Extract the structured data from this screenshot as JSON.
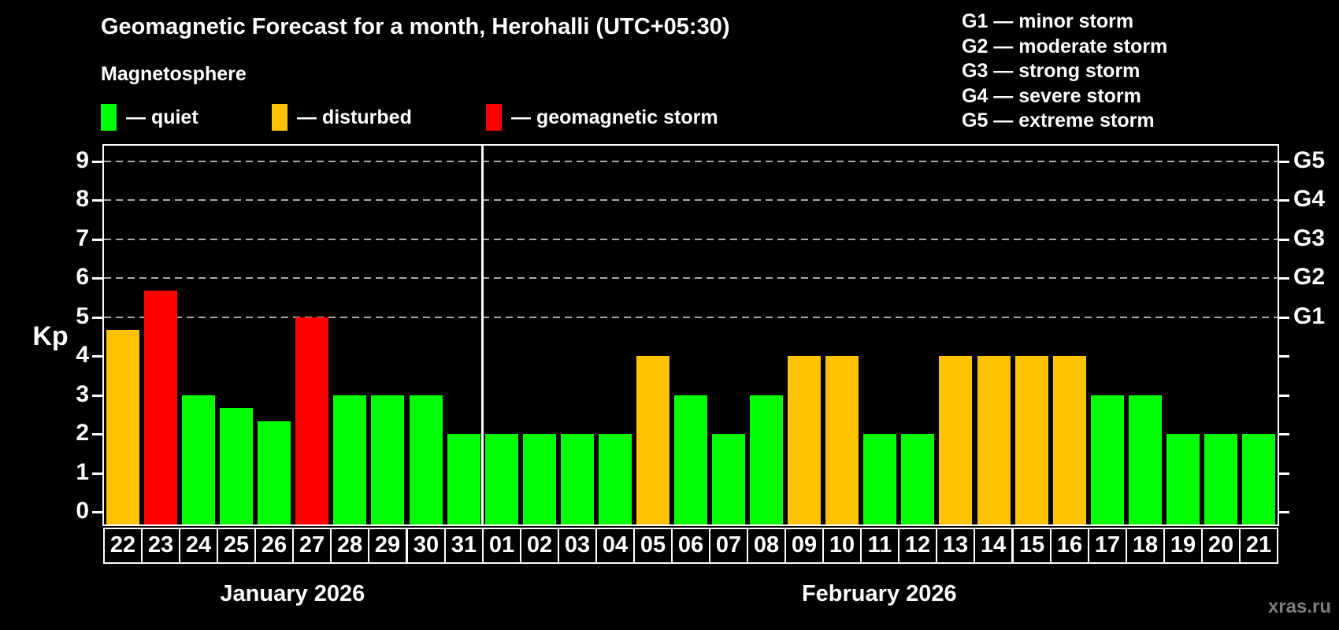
{
  "title": "Geomagnetic Forecast for a month, Herohalli (UTC+05:30)",
  "subtitle": "Magnetosphere",
  "condition_legend": [
    {
      "status": "quiet",
      "label": "— quiet",
      "color": "#00ff00"
    },
    {
      "status": "disturbed",
      "label": "— disturbed",
      "color": "#ffc200"
    },
    {
      "status": "storm",
      "label": "— geomagnetic storm",
      "color": "#ff0000"
    }
  ],
  "storm_scale_legend": [
    "G1 — minor storm",
    "G2 — moderate storm",
    "G3 — strong storm",
    "G4 — severe storm",
    "G5 — extreme storm"
  ],
  "watermark": "xras.ru",
  "chart_data": {
    "type": "bar",
    "ylabel": "Kp",
    "ylim": [
      0,
      9
    ],
    "yticks": [
      0,
      1,
      2,
      3,
      4,
      5,
      6,
      7,
      8,
      9
    ],
    "gridlines_at": [
      5,
      6,
      7,
      8,
      9
    ],
    "grid": "dashed-horizontal-top-half",
    "legend_position": "top-left",
    "right_axis": [
      {
        "value": 5,
        "label": "G1"
      },
      {
        "value": 6,
        "label": "G2"
      },
      {
        "value": 7,
        "label": "G3"
      },
      {
        "value": 8,
        "label": "G4"
      },
      {
        "value": 9,
        "label": "G5"
      }
    ],
    "status_colors": {
      "quiet": "#00ff00",
      "disturbed": "#ffc200",
      "storm": "#ff0000"
    },
    "groups": [
      {
        "label": "January 2026",
        "days": [
          {
            "day": "22",
            "kp": 4.67,
            "status": "disturbed"
          },
          {
            "day": "23",
            "kp": 5.67,
            "status": "storm"
          },
          {
            "day": "24",
            "kp": 3.0,
            "status": "quiet"
          },
          {
            "day": "25",
            "kp": 2.67,
            "status": "quiet"
          },
          {
            "day": "26",
            "kp": 2.33,
            "status": "quiet"
          },
          {
            "day": "27",
            "kp": 5.0,
            "status": "storm"
          },
          {
            "day": "28",
            "kp": 3.0,
            "status": "quiet"
          },
          {
            "day": "29",
            "kp": 3.0,
            "status": "quiet"
          },
          {
            "day": "30",
            "kp": 3.0,
            "status": "quiet"
          },
          {
            "day": "31",
            "kp": 2.0,
            "status": "quiet"
          }
        ]
      },
      {
        "label": "February 2026",
        "days": [
          {
            "day": "01",
            "kp": 2.0,
            "status": "quiet"
          },
          {
            "day": "02",
            "kp": 2.0,
            "status": "quiet"
          },
          {
            "day": "03",
            "kp": 2.0,
            "status": "quiet"
          },
          {
            "day": "04",
            "kp": 2.0,
            "status": "quiet"
          },
          {
            "day": "05",
            "kp": 4.0,
            "status": "disturbed"
          },
          {
            "day": "06",
            "kp": 3.0,
            "status": "quiet"
          },
          {
            "day": "07",
            "kp": 2.0,
            "status": "quiet"
          },
          {
            "day": "08",
            "kp": 3.0,
            "status": "quiet"
          },
          {
            "day": "09",
            "kp": 4.0,
            "status": "disturbed"
          },
          {
            "day": "10",
            "kp": 4.0,
            "status": "disturbed"
          },
          {
            "day": "11",
            "kp": 2.0,
            "status": "quiet"
          },
          {
            "day": "12",
            "kp": 2.0,
            "status": "quiet"
          },
          {
            "day": "13",
            "kp": 4.0,
            "status": "disturbed"
          },
          {
            "day": "14",
            "kp": 4.0,
            "status": "disturbed"
          },
          {
            "day": "15",
            "kp": 4.0,
            "status": "disturbed"
          },
          {
            "day": "16",
            "kp": 4.0,
            "status": "disturbed"
          },
          {
            "day": "17",
            "kp": 3.0,
            "status": "quiet"
          },
          {
            "day": "18",
            "kp": 3.0,
            "status": "quiet"
          },
          {
            "day": "19",
            "kp": 2.0,
            "status": "quiet"
          },
          {
            "day": "20",
            "kp": 2.0,
            "status": "quiet"
          },
          {
            "day": "21",
            "kp": 2.0,
            "status": "quiet"
          }
        ]
      }
    ]
  }
}
